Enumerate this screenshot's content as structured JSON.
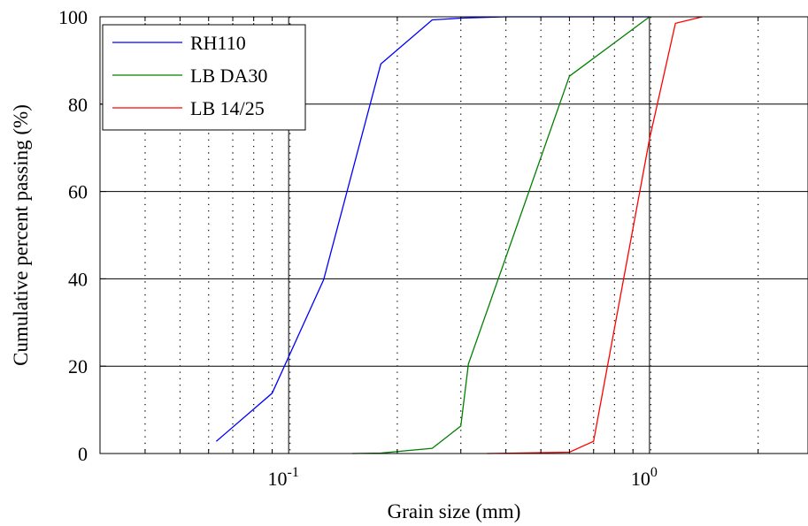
{
  "chart_data": {
    "type": "line",
    "title": "",
    "xlabel": "Grain size (mm)",
    "ylabel": "Cumulative percent passing (%)",
    "x_scale": "log",
    "xlim": [
      0.03,
      2.75
    ],
    "ylim": [
      0,
      100
    ],
    "x_major_ticks": [
      {
        "value": 0.1,
        "base": "10",
        "exp": "-1"
      },
      {
        "value": 1,
        "base": "10",
        "exp": "0"
      }
    ],
    "x_minor_ticks": [
      0.04,
      0.05,
      0.06,
      0.07,
      0.08,
      0.09,
      0.2,
      0.3,
      0.4,
      0.5,
      0.6,
      0.7,
      0.8,
      0.9,
      2
    ],
    "y_ticks": [
      "0",
      "20",
      "40",
      "60",
      "80",
      "100"
    ],
    "grid": true,
    "legend_position": "top-left",
    "series": [
      {
        "name": "RH110",
        "color": "#0000ff",
        "points": [
          [
            0.063,
            2.8
          ],
          [
            0.09,
            13.8
          ],
          [
            0.125,
            39.8
          ],
          [
            0.18,
            89.2
          ],
          [
            0.25,
            99.3
          ],
          [
            0.3,
            99.7
          ],
          [
            0.4,
            100
          ],
          [
            1,
            100
          ]
        ]
      },
      {
        "name": "LB DA30",
        "color": "#008000",
        "points": [
          [
            0.15,
            0
          ],
          [
            0.18,
            0.1
          ],
          [
            0.25,
            1.2
          ],
          [
            0.3,
            6.3
          ],
          [
            0.315,
            20.5
          ],
          [
            0.6,
            86.4
          ],
          [
            1,
            100
          ]
        ]
      },
      {
        "name": "LB 14/25",
        "color": "#ff0000",
        "points": [
          [
            0.355,
            0
          ],
          [
            0.6,
            0.3
          ],
          [
            0.7,
            2.8
          ],
          [
            1,
            72
          ],
          [
            1.18,
            98.5
          ],
          [
            1.4,
            100
          ]
        ]
      }
    ]
  }
}
